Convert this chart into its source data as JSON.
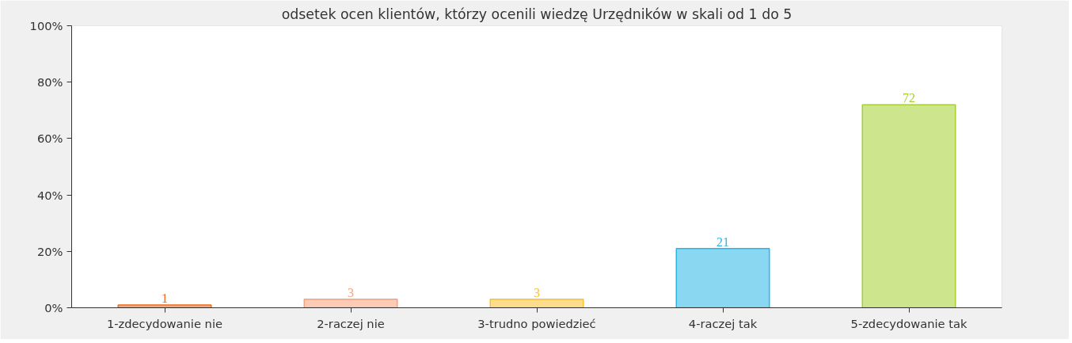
{
  "chart_data": {
    "type": "bar",
    "title": "odsetek ocen klientów, którzy ocenili wiedzę Urzędników w skali od 1 do 5",
    "categories": [
      "1-zdecydowanie nie",
      "2-raczej nie",
      "3-trudno powiedzieć",
      "4-raczej tak",
      "5-zdecydowanie tak"
    ],
    "values": [
      1,
      3,
      3,
      21,
      72
    ],
    "colors": [
      "#f26b1d",
      "#f9a07a",
      "#fbc02d",
      "#29b6e6",
      "#a4cf2f"
    ],
    "ylim": [
      0,
      100
    ],
    "yticks": [
      {
        "value": 0,
        "label": "0%"
      },
      {
        "value": 20,
        "label": "20%"
      },
      {
        "value": 40,
        "label": "40%"
      },
      {
        "value": 60,
        "label": "60%"
      },
      {
        "value": 80,
        "label": "80%"
      },
      {
        "value": 100,
        "label": "100%"
      }
    ],
    "data_labels": true
  }
}
